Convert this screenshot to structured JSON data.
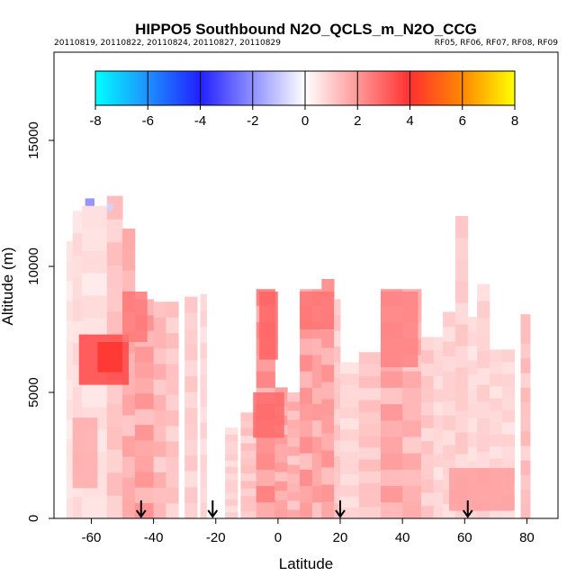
{
  "chart_data": {
    "type": "heatmap",
    "title": "HIPPO5 Southbound N2O_QCLS_m_N2O_CCG",
    "subtitle_left": "20110819, 20110822, 20110824, 20110827, 20110829",
    "subtitle_right": "RF05, RF06, RF07, RF08, RF09",
    "xlabel": "Latitude",
    "ylabel": "Altitude (m)",
    "xlim": [
      -72,
      90
    ],
    "ylim": [
      0,
      18500
    ],
    "x_ticks": [
      -60,
      -40,
      -20,
      0,
      20,
      40,
      60,
      80
    ],
    "x_tick_labels": [
      "-60",
      "-40",
      "-20",
      "0",
      "20",
      "40",
      "60",
      "80"
    ],
    "y_ticks": [
      0,
      5000,
      10000,
      15000
    ],
    "y_tick_labels": [
      "0",
      "5000",
      "10000",
      "15000"
    ],
    "colorbar": {
      "range": [
        -8,
        8
      ],
      "ticks": [
        -8,
        -6,
        -4,
        -2,
        0,
        2,
        4,
        6,
        8
      ],
      "tick_labels": [
        "-8",
        "-6",
        "-4",
        "-2",
        "0",
        "2",
        "4",
        "6",
        "8"
      ],
      "colors": [
        "#00ffff",
        "#1e90ff",
        "#2020ff",
        "#ffffff",
        "#ff3030",
        "#ff8800",
        "#ffff00"
      ]
    },
    "arrow_markers_lat": [
      -44,
      -21,
      20,
      61
    ],
    "columns": [
      {
        "lat0": -68,
        "lat1": -60,
        "top": 11000,
        "val": 0.6
      },
      {
        "lat0": -66,
        "lat1": -63,
        "top": 12200,
        "val": 0.8
      },
      {
        "lat0": -63,
        "lat1": -55,
        "top": 12400,
        "val": 0.7
      },
      {
        "lat0": -55,
        "lat1": -50,
        "top": 12800,
        "val": 1.3
      },
      {
        "lat0": -50,
        "lat1": -46,
        "top": 11500,
        "val": 1.8
      },
      {
        "lat0": -46,
        "lat1": -40,
        "top": 8700,
        "val": 2.1
      },
      {
        "lat0": -40,
        "lat1": -36,
        "top": 8600,
        "val": 1.6
      },
      {
        "lat0": -36,
        "lat1": -32,
        "top": 8600,
        "val": 1.3
      },
      {
        "lat0": -30,
        "lat1": -26,
        "top": 8800,
        "val": 1.1
      },
      {
        "lat0": -25,
        "lat1": -23,
        "top": 8900,
        "val": 0.9
      },
      {
        "lat0": -17,
        "lat1": -13,
        "top": 3600,
        "val": 1.0
      },
      {
        "lat0": -12,
        "lat1": -7,
        "top": 4200,
        "val": 1.3
      },
      {
        "lat0": -7,
        "lat1": -1,
        "top": 9100,
        "val": 2.4
      },
      {
        "lat0": -1,
        "lat1": 3,
        "top": 5200,
        "val": 2.0
      },
      {
        "lat0": 3,
        "lat1": 7,
        "top": 5000,
        "val": 1.7
      },
      {
        "lat0": 7,
        "lat1": 11,
        "top": 9100,
        "val": 2.2
      },
      {
        "lat0": 11,
        "lat1": 14,
        "top": 9100,
        "val": 2.0
      },
      {
        "lat0": 14,
        "lat1": 18,
        "top": 9500,
        "val": 2.1
      },
      {
        "lat0": 18,
        "lat1": 20,
        "top": 8700,
        "val": 1.2
      },
      {
        "lat0": 20,
        "lat1": 26,
        "top": 6200,
        "val": 0.9
      },
      {
        "lat0": 26,
        "lat1": 33,
        "top": 6600,
        "val": 1.3
      },
      {
        "lat0": 33,
        "lat1": 40,
        "top": 9100,
        "val": 2.0
      },
      {
        "lat0": 40,
        "lat1": 46,
        "top": 9100,
        "val": 1.7
      },
      {
        "lat0": 46,
        "lat1": 50,
        "top": 7200,
        "val": 1.2
      },
      {
        "lat0": 50,
        "lat1": 53,
        "top": 7200,
        "val": 0.9
      },
      {
        "lat0": 53,
        "lat1": 57,
        "top": 8200,
        "val": 1.0
      },
      {
        "lat0": 57,
        "lat1": 61,
        "top": 12000,
        "val": 1.1
      },
      {
        "lat0": 61,
        "lat1": 64,
        "top": 8000,
        "val": 0.8
      },
      {
        "lat0": 64,
        "lat1": 68,
        "top": 9300,
        "val": 1.0
      },
      {
        "lat0": 68,
        "lat1": 72,
        "top": 6700,
        "val": 0.9
      },
      {
        "lat0": 72,
        "lat1": 76,
        "top": 6700,
        "val": 0.9
      },
      {
        "lat0": 78,
        "lat1": 81,
        "top": 8100,
        "val": 1.4
      }
    ],
    "patches": [
      {
        "lat0": -64,
        "lat1": -48,
        "alt0": 5300,
        "alt1": 7300,
        "val": 3.6
      },
      {
        "lat0": -58,
        "lat1": -50,
        "alt0": 5800,
        "alt1": 7000,
        "val": 4.1
      },
      {
        "lat0": -50,
        "lat1": -42,
        "alt0": 7000,
        "alt1": 9000,
        "val": 2.6
      },
      {
        "lat0": -66,
        "lat1": -58,
        "alt0": 1200,
        "alt1": 4000,
        "val": 1.6
      },
      {
        "lat0": -6,
        "lat1": 0,
        "alt0": 6300,
        "alt1": 9000,
        "val": 3.0
      },
      {
        "lat0": -8,
        "lat1": 2,
        "alt0": 3200,
        "alt1": 5000,
        "val": 2.9
      },
      {
        "lat0": 7,
        "lat1": 18,
        "alt0": 7500,
        "alt1": 9000,
        "val": 2.7
      },
      {
        "lat0": 33,
        "lat1": 45,
        "alt0": 6000,
        "alt1": 9000,
        "val": 2.4
      },
      {
        "lat0": 55,
        "lat1": 76,
        "alt0": 300,
        "alt1": 2000,
        "val": 1.9
      },
      {
        "lat0": -62,
        "lat1": -59,
        "alt0": 12400,
        "alt1": 12700,
        "val": -2.2
      },
      {
        "lat0": -55,
        "lat1": -53,
        "alt0": 12200,
        "alt1": 12500,
        "val": -0.8
      }
    ]
  }
}
